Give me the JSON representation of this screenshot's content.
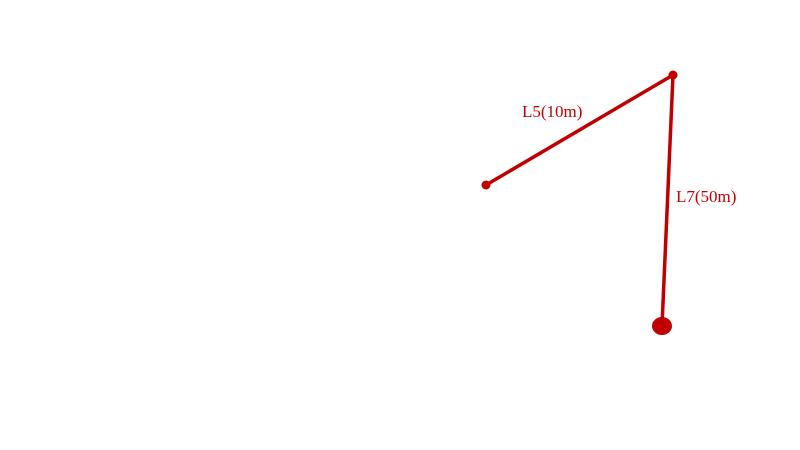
{
  "diagram": {
    "color": "#c00000",
    "segments": [
      {
        "label": "L5(10m)"
      },
      {
        "label": "L7(50m)"
      }
    ]
  }
}
